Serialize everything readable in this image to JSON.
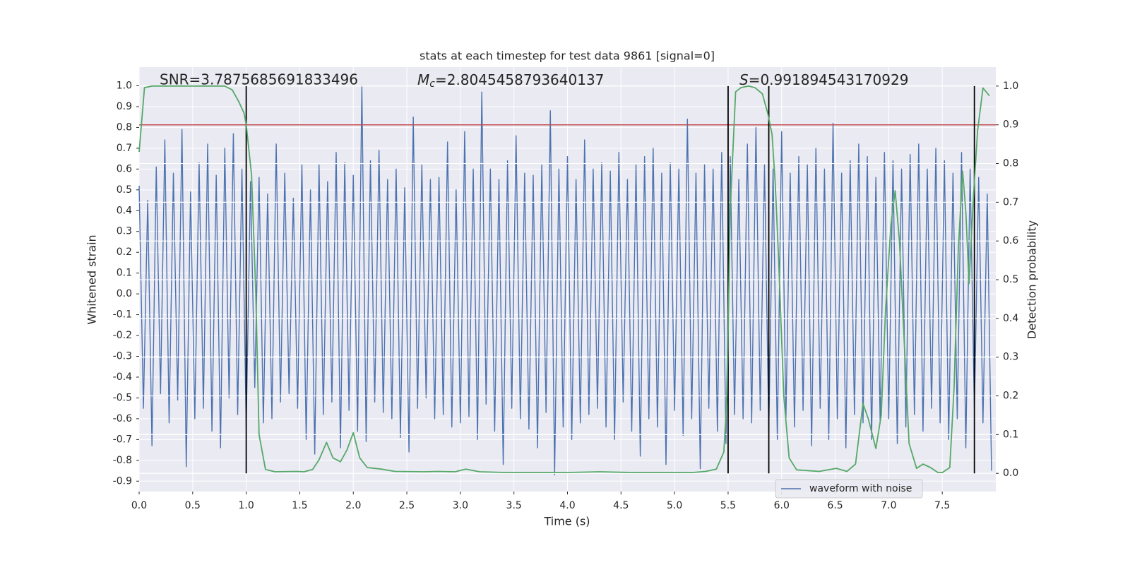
{
  "chart_data": {
    "type": "line",
    "title": "stats at each timestep for test data 9861 [signal=0]",
    "xlabel": "Time (s)",
    "ylabel": "Whitened strain",
    "y2label": "Detection probability",
    "annotations": [
      {
        "text": "SNR=3.7875685691833496"
      },
      {
        "symbol": "M",
        "sub": "c",
        "text": "=2.8045458793640137"
      },
      {
        "symbol": "S",
        "text": "=0.991894543170929"
      }
    ],
    "xlim": [
      0,
      8
    ],
    "ylim": [
      -0.95,
      1.09
    ],
    "y2lim": [
      -0.047,
      1.049
    ],
    "xticks": [
      {
        "value": 0,
        "label": "0.0"
      },
      0.5,
      {
        "value": 1,
        "label": "1.0"
      },
      1.5,
      {
        "value": 2,
        "label": "2.0"
      },
      2.5,
      {
        "value": 3,
        "label": "3.0"
      },
      3.5,
      {
        "value": 4,
        "label": "4.0"
      },
      4.5,
      {
        "value": 5,
        "label": "5.0"
      },
      5.5,
      {
        "value": 6,
        "label": "6.0"
      },
      6.5,
      {
        "value": 7,
        "label": "7.0"
      },
      7.5
    ],
    "yticks": [
      {
        "value": 1,
        "label": "1.0"
      },
      0.9,
      0.8,
      0.7,
      0.6,
      0.5,
      0.4,
      0.3,
      0.2,
      0.1,
      {
        "value": 0,
        "label": "0.0"
      },
      -0.1,
      -0.2,
      -0.3,
      -0.4,
      -0.5,
      -0.6,
      -0.7,
      -0.8,
      -0.9
    ],
    "y2ticks": [
      {
        "value": 1,
        "label": "1.0"
      },
      0.9,
      0.8,
      0.7,
      0.6,
      0.5,
      0.4,
      0.3,
      0.2,
      0.1,
      {
        "value": 0,
        "label": "0.0"
      }
    ],
    "grid": true,
    "legend": "lower right",
    "threshold": 0.9,
    "threshold_color": "#c44e52",
    "vlines": [
      1.0,
      5.5,
      5.88,
      7.8
    ],
    "vline_color": "#000000",
    "series": [
      {
        "name": "waveform with noise",
        "color": "#4c72b0",
        "x": [
          0,
          0.04,
          0.08,
          0.12,
          0.16,
          0.2,
          0.24,
          0.28,
          0.32,
          0.36,
          0.4,
          0.44,
          0.48,
          0.52,
          0.56,
          0.6,
          0.64,
          0.68,
          0.72,
          0.76,
          0.8,
          0.84,
          0.88,
          0.92,
          0.96,
          1,
          1.04,
          1.08,
          1.12,
          1.16,
          1.2,
          1.24,
          1.28,
          1.32,
          1.36,
          1.4,
          1.44,
          1.48,
          1.52,
          1.56,
          1.6,
          1.64,
          1.68,
          1.72,
          1.76,
          1.8,
          1.84,
          1.88,
          1.92,
          1.96,
          2,
          2.04,
          2.08,
          2.12,
          2.16,
          2.2,
          2.24,
          2.28,
          2.32,
          2.36,
          2.4,
          2.44,
          2.48,
          2.52,
          2.56,
          2.6,
          2.64,
          2.68,
          2.72,
          2.76,
          2.8,
          2.84,
          2.88,
          2.92,
          2.96,
          3,
          3.04,
          3.08,
          3.12,
          3.16,
          3.2,
          3.24,
          3.28,
          3.32,
          3.36,
          3.4,
          3.44,
          3.48,
          3.52,
          3.56,
          3.6,
          3.64,
          3.68,
          3.72,
          3.76,
          3.8,
          3.84,
          3.88,
          3.92,
          3.96,
          4,
          4.04,
          4.08,
          4.12,
          4.16,
          4.2,
          4.24,
          4.28,
          4.32,
          4.36,
          4.4,
          4.44,
          4.48,
          4.52,
          4.56,
          4.6,
          4.64,
          4.68,
          4.72,
          4.76,
          4.8,
          4.84,
          4.88,
          4.92,
          4.96,
          5,
          5.04,
          5.08,
          5.12,
          5.16,
          5.2,
          5.24,
          5.28,
          5.32,
          5.36,
          5.4,
          5.44,
          5.48,
          5.52,
          5.56,
          5.6,
          5.64,
          5.68,
          5.72,
          5.76,
          5.8,
          5.84,
          5.88,
          5.92,
          5.96,
          6,
          6.04,
          6.08,
          6.12,
          6.16,
          6.2,
          6.24,
          6.28,
          6.32,
          6.36,
          6.4,
          6.44,
          6.48,
          6.52,
          6.56,
          6.6,
          6.64,
          6.68,
          6.72,
          6.76,
          6.8,
          6.84,
          6.88,
          6.92,
          6.96,
          7,
          7.04,
          7.08,
          7.12,
          7.16,
          7.2,
          7.24,
          7.28,
          7.32,
          7.36,
          7.4,
          7.44,
          7.48,
          7.52,
          7.56,
          7.6,
          7.64,
          7.68,
          7.72,
          7.76,
          7.8,
          7.84,
          7.88,
          7.92,
          7.96
        ],
        "values": [
          0.52,
          -0.55,
          0.45,
          -0.73,
          0.61,
          -0.48,
          0.74,
          -0.62,
          0.58,
          -0.51,
          0.79,
          -0.83,
          0.49,
          -0.6,
          0.63,
          -0.55,
          0.72,
          -0.66,
          0.57,
          -0.74,
          0.7,
          -0.5,
          0.77,
          -0.58,
          0.6,
          -0.64,
          0.54,
          -0.45,
          0.56,
          -0.62,
          0.48,
          -0.6,
          0.72,
          -0.52,
          0.58,
          -0.48,
          0.46,
          -0.55,
          0.62,
          -0.7,
          0.5,
          -0.77,
          0.62,
          -0.58,
          0.54,
          -0.52,
          0.68,
          -0.74,
          0.63,
          -0.56,
          0.57,
          -0.66,
          1.0,
          -0.71,
          0.64,
          -0.52,
          0.69,
          -0.57,
          0.55,
          -0.6,
          0.6,
          -0.69,
          0.51,
          -0.76,
          0.85,
          -0.55,
          0.62,
          -0.5,
          0.55,
          -0.6,
          0.56,
          -0.58,
          0.73,
          -0.64,
          0.5,
          -0.62,
          0.78,
          -0.59,
          0.6,
          -0.7,
          0.97,
          -0.53,
          0.6,
          -0.66,
          0.55,
          -0.82,
          0.64,
          -0.55,
          0.76,
          -0.6,
          0.58,
          -0.65,
          0.57,
          -0.74,
          0.62,
          -0.57,
          0.88,
          -0.87,
          0.6,
          -0.64,
          0.66,
          -0.7,
          0.55,
          -0.62,
          0.74,
          -0.58,
          0.6,
          -0.55,
          0.63,
          -0.64,
          0.59,
          -0.7,
          0.68,
          -0.52,
          0.55,
          -0.66,
          0.62,
          -0.78,
          0.66,
          -0.6,
          0.7,
          -0.64,
          0.58,
          -0.82,
          0.63,
          -0.56,
          0.6,
          -0.68,
          0.84,
          -0.6,
          0.58,
          -0.84,
          0.62,
          -0.55,
          0.6,
          -0.66,
          0.68,
          -0.72,
          0.66,
          -0.58,
          0.55,
          -0.6,
          0.72,
          -0.62,
          0.8,
          -0.56,
          0.62,
          -0.66,
          0.6,
          -0.7,
          0.78,
          -0.6,
          0.58,
          -0.64,
          0.66,
          -0.56,
          0.62,
          -0.73,
          0.7,
          -0.55,
          0.6,
          -0.7,
          0.82,
          -0.6,
          0.58,
          -0.74,
          0.64,
          -0.58,
          0.72,
          -0.62,
          0.66,
          -0.7,
          0.56,
          -0.62,
          0.68,
          -0.6,
          0.64,
          -0.72,
          0.6,
          -0.64,
          0.67,
          -0.58,
          0.72,
          -0.66,
          0.6,
          -0.55,
          0.7,
          -0.62,
          0.64,
          -0.7,
          0.58,
          -0.6,
          0.68,
          -0.74,
          0.6,
          -0.56,
          0.56,
          -0.62,
          0.48,
          -0.85
        ]
      },
      {
        "color": "#55a868",
        "axis": "y2",
        "x": [
          0,
          0.05,
          0.12,
          0.8,
          0.87,
          0.93,
          0.98,
          1.0,
          1.05,
          1.09,
          1.12,
          1.18,
          1.27,
          1.47,
          1.54,
          1.62,
          1.68,
          1.75,
          1.81,
          1.88,
          1.94,
          2.0,
          2.06,
          2.13,
          2.26,
          2.39,
          2.66,
          2.79,
          2.95,
          3.05,
          3.18,
          3.45,
          3.97,
          4.3,
          4.63,
          5.16,
          5.29,
          5.39,
          5.46,
          5.49,
          5.52,
          5.57,
          5.62,
          5.69,
          5.75,
          5.82,
          5.87,
          5.91,
          5.94,
          5.97,
          6.02,
          6.07,
          6.14,
          6.35,
          6.51,
          6.61,
          6.69,
          6.76,
          6.81,
          6.88,
          6.93,
          6.97,
          7.02,
          7.06,
          7.1,
          7.15,
          7.19,
          7.26,
          7.32,
          7.39,
          7.46,
          7.5,
          7.57,
          7.61,
          7.65,
          7.69,
          7.72,
          7.75,
          7.79,
          7.83,
          7.88,
          7.94
        ],
        "values": [
          0.83,
          0.996,
          1.0,
          1.0,
          0.99,
          0.96,
          0.93,
          0.9,
          0.77,
          0.46,
          0.1,
          0.01,
          0.004,
          0.005,
          0.004,
          0.01,
          0.035,
          0.08,
          0.04,
          0.03,
          0.06,
          0.105,
          0.04,
          0.015,
          0.011,
          0.005,
          0.004,
          0.005,
          0.004,
          0.011,
          0.004,
          0.002,
          0.002,
          0.004,
          0.002,
          0.002,
          0.005,
          0.011,
          0.055,
          0.2,
          0.68,
          0.985,
          0.996,
          1.0,
          0.996,
          0.98,
          0.93,
          0.876,
          0.75,
          0.565,
          0.2,
          0.04,
          0.009,
          0.005,
          0.013,
          0.005,
          0.024,
          0.18,
          0.14,
          0.064,
          0.15,
          0.42,
          0.64,
          0.73,
          0.6,
          0.31,
          0.077,
          0.013,
          0.024,
          0.015,
          0.002,
          0.002,
          0.015,
          0.22,
          0.58,
          0.78,
          0.675,
          0.49,
          0.71,
          0.885,
          0.995,
          0.975
        ]
      }
    ]
  }
}
